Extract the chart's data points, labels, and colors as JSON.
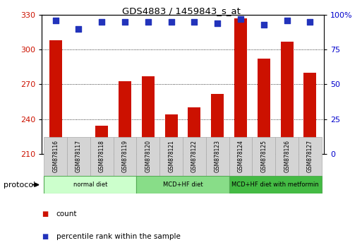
{
  "title": "GDS4883 / 1459843_s_at",
  "samples": [
    "GSM878116",
    "GSM878117",
    "GSM878118",
    "GSM878119",
    "GSM878120",
    "GSM878121",
    "GSM878122",
    "GSM878123",
    "GSM878124",
    "GSM878125",
    "GSM878126",
    "GSM878127"
  ],
  "bar_values": [
    308,
    217,
    234,
    273,
    277,
    244,
    250,
    262,
    327,
    292,
    307,
    280
  ],
  "percentile_values": [
    96,
    90,
    95,
    95,
    95,
    95,
    95,
    94,
    97,
    93,
    96,
    95
  ],
  "bar_color": "#cc1100",
  "dot_color": "#2233bb",
  "ylim_left": [
    210,
    330
  ],
  "ylim_right": [
    0,
    100
  ],
  "yticks_left": [
    210,
    240,
    270,
    300,
    330
  ],
  "yticks_right": [
    0,
    25,
    50,
    75,
    100
  ],
  "ytick_labels_right": [
    "0",
    "25",
    "50",
    "75",
    "100%"
  ],
  "groups": [
    {
      "label": "normal diet",
      "start": 0,
      "end": 4,
      "color": "#ccffcc",
      "edge": "#55aa55"
    },
    {
      "label": "MCD+HF diet",
      "start": 4,
      "end": 8,
      "color": "#88dd88",
      "edge": "#55aa55"
    },
    {
      "label": "MCD+HF diet with metformin",
      "start": 8,
      "end": 12,
      "color": "#44bb44",
      "edge": "#55aa55"
    }
  ],
  "protocol_label": "protocol",
  "legend_count_label": "count",
  "legend_pct_label": "percentile rank within the sample",
  "background_color": "#ffffff",
  "plot_bg_color": "#ffffff",
  "tick_label_color_left": "#cc1100",
  "tick_label_color_right": "#0000cc",
  "bar_width": 0.55,
  "dot_size": 40,
  "cell_color": "#d4d4d4",
  "cell_edge_color": "#aaaaaa"
}
